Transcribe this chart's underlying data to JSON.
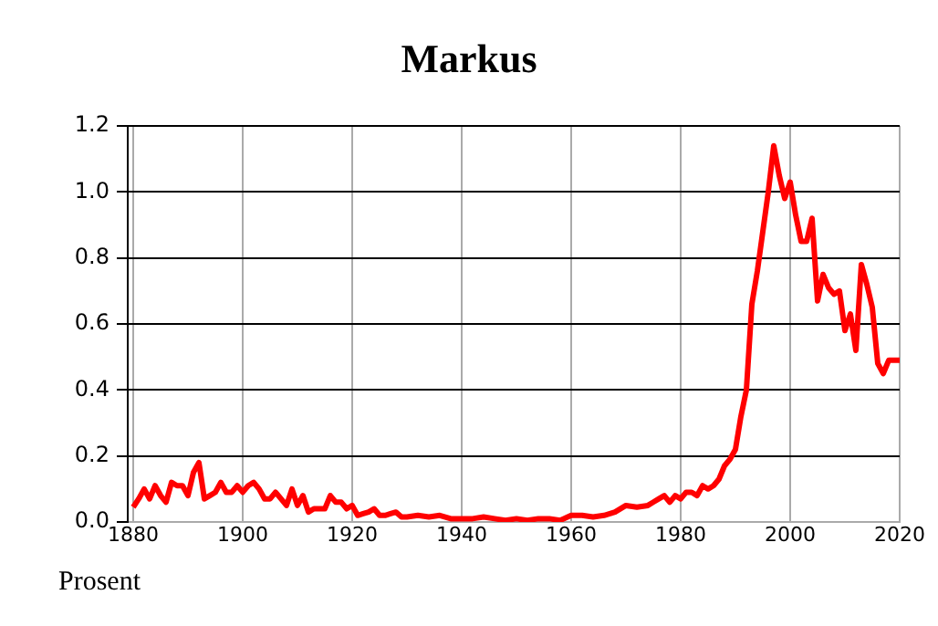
{
  "chart_data": {
    "type": "line",
    "title": "Markus",
    "ylabel": "Prosent",
    "x": [
      1880,
      1881,
      1882,
      1883,
      1884,
      1885,
      1886,
      1887,
      1888,
      1889,
      1890,
      1891,
      1892,
      1893,
      1894,
      1895,
      1896,
      1897,
      1898,
      1899,
      1900,
      1901,
      1902,
      1903,
      1904,
      1905,
      1906,
      1907,
      1908,
      1909,
      1910,
      1911,
      1912,
      1913,
      1914,
      1915,
      1916,
      1917,
      1918,
      1919,
      1920,
      1921,
      1922,
      1923,
      1924,
      1925,
      1926,
      1927,
      1928,
      1929,
      1930,
      1932,
      1934,
      1936,
      1938,
      1940,
      1942,
      1944,
      1946,
      1948,
      1950,
      1952,
      1954,
      1956,
      1958,
      1960,
      1962,
      1964,
      1966,
      1968,
      1970,
      1972,
      1974,
      1975,
      1976,
      1977,
      1978,
      1979,
      1980,
      1981,
      1982,
      1983,
      1984,
      1985,
      1986,
      1987,
      1988,
      1989,
      1990,
      1991,
      1992,
      1993,
      1994,
      1995,
      1996,
      1997,
      1998,
      1999,
      2000,
      2001,
      2002,
      2003,
      2004,
      2005,
      2006,
      2007,
      2008,
      2009,
      2010,
      2011,
      2012,
      2013,
      2014,
      2015,
      2016,
      2017,
      2018,
      2019,
      2020
    ],
    "series": [
      {
        "color": "#ff0000",
        "values": [
          0.045,
          0.07,
          0.1,
          0.07,
          0.11,
          0.08,
          0.06,
          0.12,
          0.11,
          0.11,
          0.08,
          0.15,
          0.18,
          0.07,
          0.08,
          0.09,
          0.12,
          0.09,
          0.09,
          0.11,
          0.09,
          0.11,
          0.12,
          0.1,
          0.07,
          0.07,
          0.09,
          0.07,
          0.05,
          0.1,
          0.05,
          0.08,
          0.03,
          0.04,
          0.04,
          0.04,
          0.08,
          0.06,
          0.06,
          0.04,
          0.05,
          0.02,
          0.025,
          0.03,
          0.04,
          0.02,
          0.02,
          0.025,
          0.03,
          0.015,
          0.015,
          0.02,
          0.015,
          0.02,
          0.01,
          0.01,
          0.01,
          0.015,
          0.01,
          0.005,
          0.01,
          0.005,
          0.01,
          0.01,
          0.005,
          0.02,
          0.02,
          0.015,
          0.02,
          0.03,
          0.05,
          0.045,
          0.05,
          0.06,
          0.07,
          0.08,
          0.06,
          0.08,
          0.07,
          0.09,
          0.09,
          0.08,
          0.11,
          0.1,
          0.11,
          0.13,
          0.17,
          0.19,
          0.22,
          0.32,
          0.4,
          0.66,
          0.76,
          0.88,
          1.0,
          1.14,
          1.05,
          0.98,
          1.03,
          0.93,
          0.85,
          0.85,
          0.92,
          0.67,
          0.75,
          0.71,
          0.69,
          0.7,
          0.58,
          0.63,
          0.52,
          0.78,
          0.72,
          0.65,
          0.48,
          0.45,
          0.49,
          0.49,
          0.49
        ]
      }
    ],
    "xlim": [
      1879,
      2020
    ],
    "xticks": [
      1880,
      1900,
      1920,
      1940,
      1960,
      1980,
      2000,
      2020
    ],
    "ylim": [
      0,
      1.2
    ],
    "yticks": [
      {
        "value": 0,
        "label": "0.0"
      },
      0.2,
      0.4,
      0.6,
      0.8,
      {
        "value": 1,
        "label": "1.0"
      },
      1.2
    ],
    "grid": true,
    "legend": false,
    "marker": "none",
    "line_style": "solid"
  }
}
